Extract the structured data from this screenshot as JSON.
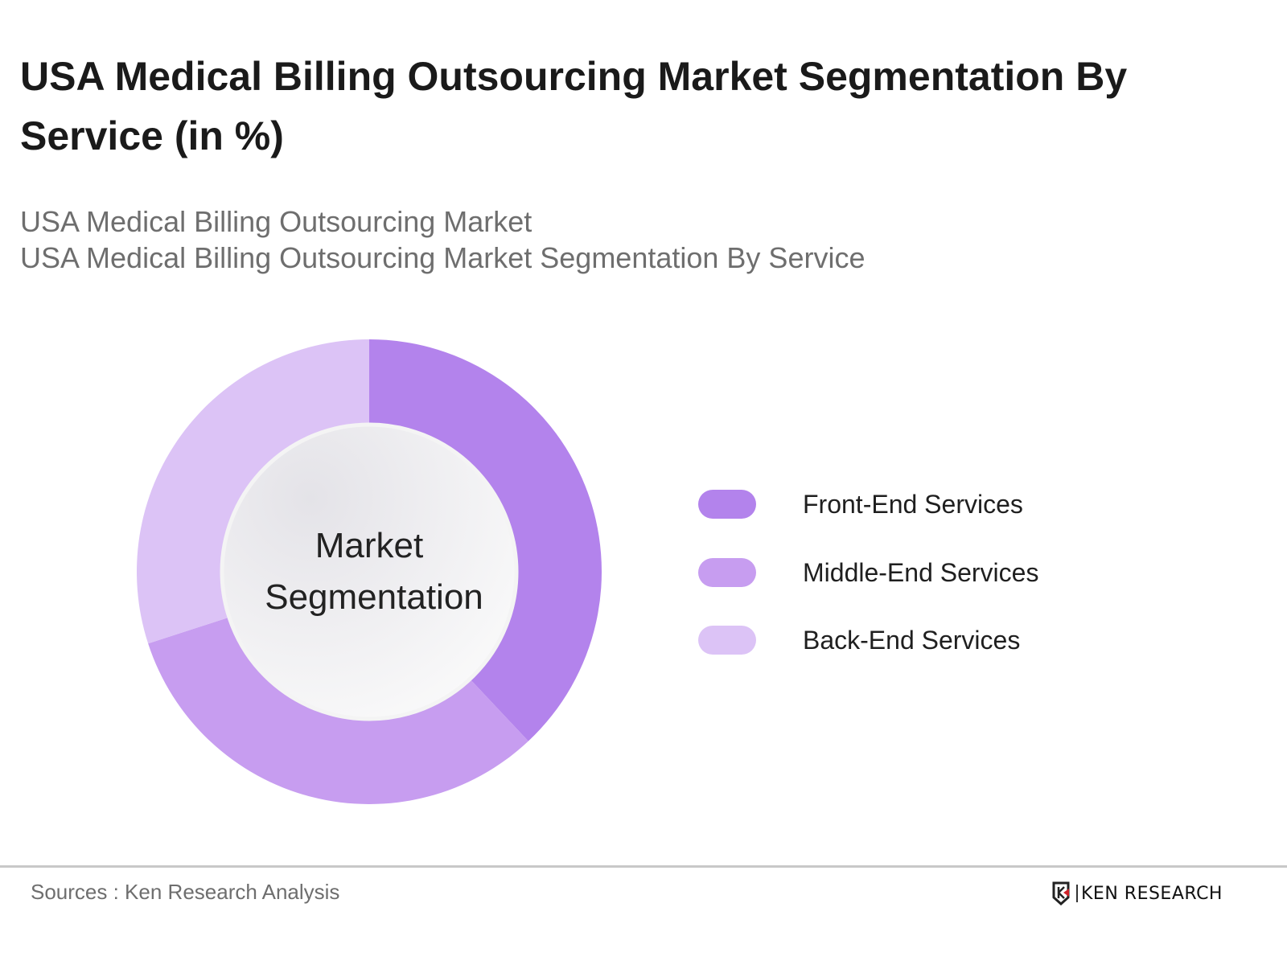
{
  "title": "USA Medical Billing Outsourcing Market Segmentation By Service (in %)",
  "subtitle_lines": [
    "USA Medical Billing Outsourcing Market",
    "USA Medical Billing Outsourcing Market Segmentation By Service"
  ],
  "chart_data": {
    "type": "pie",
    "variant": "donut",
    "center_label": "Market Segmentation",
    "categories": [
      "Front-End Services",
      "Middle-End Services",
      "Back-End Services"
    ],
    "values": [
      38,
      32,
      30
    ],
    "colors": [
      "#b383ec",
      "#c79df0",
      "#dcc3f6"
    ],
    "legend_position": "right",
    "data_labels_shown": false
  },
  "footer": {
    "source": "Sources : Ken Research Analysis",
    "logo": "KEN RESEARCH"
  }
}
